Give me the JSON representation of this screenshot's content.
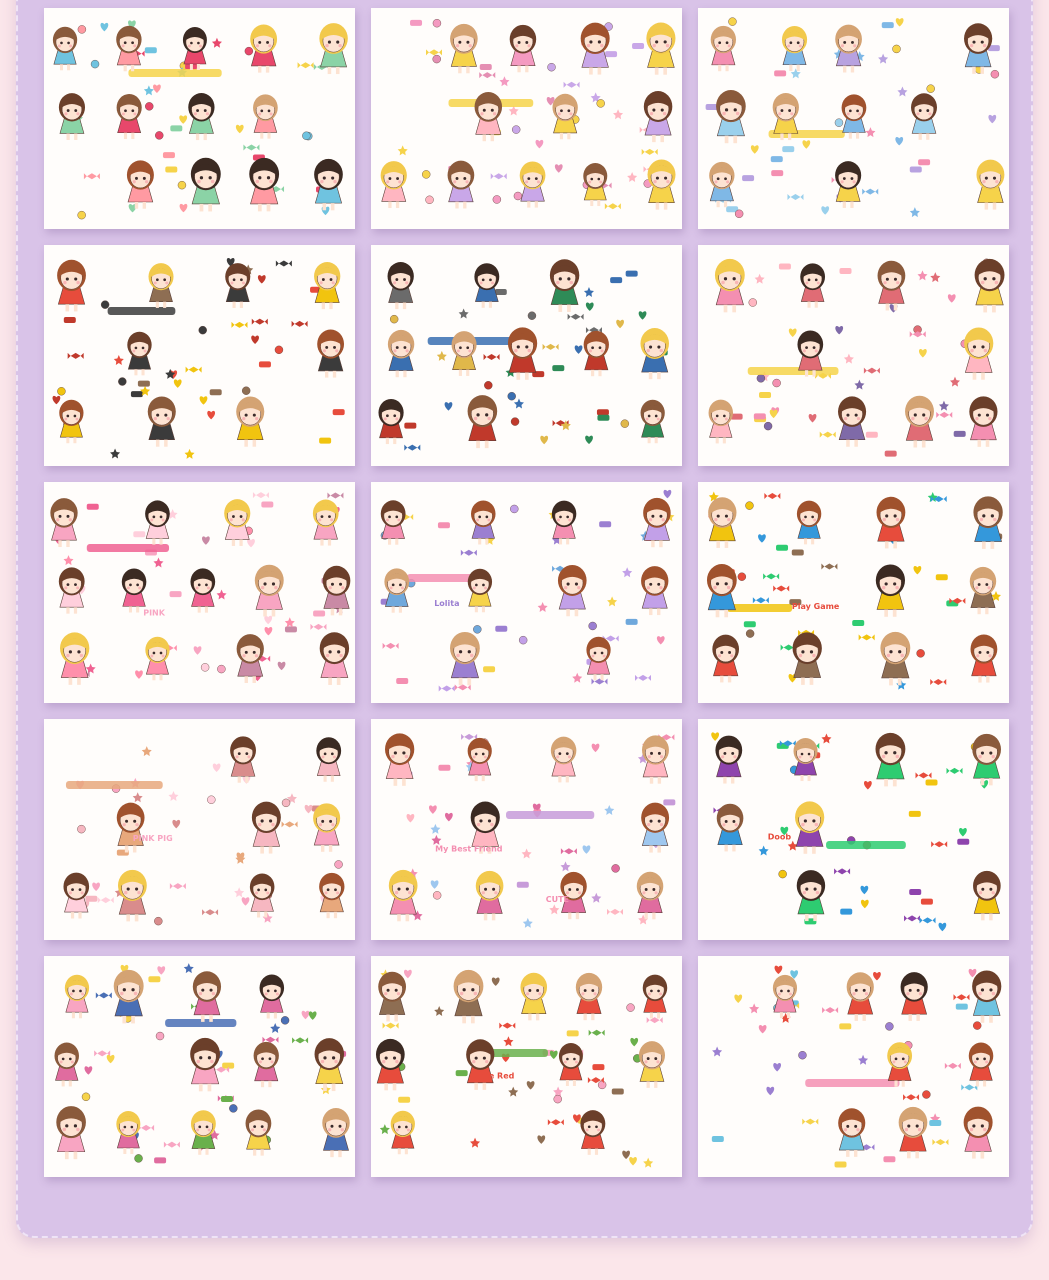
{
  "colors": {
    "page_background": "#fbe6ea",
    "frame_background": "#d9c3e8",
    "sheet_background": "#fffdfb"
  },
  "sheets": [
    {
      "row": 1,
      "col": 1,
      "theme": "fairytale-princesses",
      "printed_text": [],
      "palette": [
        "#e8476b",
        "#f6d34a",
        "#6fc3e0",
        "#ff9aa2",
        "#8bd3a6"
      ]
    },
    {
      "row": 1,
      "col": 2,
      "theme": "pink-princess-stage",
      "printed_text": [],
      "palette": [
        "#f49ac1",
        "#f6d34a",
        "#c9a7e8",
        "#ffb6c1",
        "#e58fb3"
      ]
    },
    {
      "row": 1,
      "col": 3,
      "theme": "ice-princess-castle",
      "printed_text": [],
      "palette": [
        "#7fb8e6",
        "#f6d34a",
        "#b8a2e0",
        "#f48fb1",
        "#9ad0ec"
      ]
    },
    {
      "row": 2,
      "col": 1,
      "theme": "wizard-school",
      "printed_text": [],
      "palette": [
        "#c0392b",
        "#3b3b3b",
        "#f1c40f",
        "#8e6e53",
        "#e74c3c"
      ]
    },
    {
      "row": 2,
      "col": 2,
      "theme": "wizard-houses",
      "printed_text": [],
      "palette": [
        "#2e8b57",
        "#3a6fb0",
        "#e0b84a",
        "#c0392b",
        "#6b6b6b"
      ]
    },
    {
      "row": 2,
      "col": 3,
      "theme": "magical-girls",
      "printed_text": [],
      "palette": [
        "#f48fb1",
        "#f6d34a",
        "#ffb6c1",
        "#7f6aa8",
        "#e06c75"
      ]
    },
    {
      "row": 3,
      "col": 1,
      "theme": "pink-sweet-girls",
      "printed_text": [
        "PINK"
      ],
      "palette": [
        "#f8a5c2",
        "#f06292",
        "#ffcfdc",
        "#c98aa5",
        "#ff8fab"
      ]
    },
    {
      "row": 3,
      "col": 2,
      "theme": "lolita-dress-up",
      "printed_text": [
        "Lolita"
      ],
      "palette": [
        "#9b7fd1",
        "#f48fb1",
        "#6fa8dc",
        "#f6d34a",
        "#c2a0e8"
      ]
    },
    {
      "row": 3,
      "col": 3,
      "theme": "traditional-and-game",
      "printed_text": [
        "Play Game"
      ],
      "palette": [
        "#e74c3c",
        "#f1c40f",
        "#2ecc71",
        "#3498db",
        "#8e6e53"
      ]
    },
    {
      "row": 4,
      "col": 1,
      "theme": "bunny-bears",
      "printed_text": [
        "PINK PIG"
      ],
      "palette": [
        "#f8a5c2",
        "#e8a87c",
        "#ffcfdc",
        "#d98c8c",
        "#f6b7c1"
      ]
    },
    {
      "row": 4,
      "col": 2,
      "theme": "best-friends",
      "printed_text": [
        "My Best Friend",
        "CUTE"
      ],
      "palette": [
        "#f48fb1",
        "#c79bd9",
        "#ffb6c1",
        "#e06c9f",
        "#9ec7ef"
      ]
    },
    {
      "row": 4,
      "col": 3,
      "theme": "adventure-friends",
      "printed_text": [
        "Doob"
      ],
      "palette": [
        "#e74c3c",
        "#2ecc71",
        "#f1c40f",
        "#8e44ad",
        "#3498db"
      ]
    },
    {
      "row": 5,
      "col": 1,
      "theme": "garden-arches",
      "printed_text": [],
      "palette": [
        "#e06c9f",
        "#4a6fb5",
        "#f6d34a",
        "#6ab04c",
        "#f8a5c2"
      ]
    },
    {
      "row": 5,
      "col": 2,
      "theme": "little-red",
      "printed_text": [
        "Little Red"
      ],
      "palette": [
        "#e74c3c",
        "#6ab04c",
        "#f8a5c2",
        "#f6d34a",
        "#8e6e53"
      ]
    },
    {
      "row": 5,
      "col": 3,
      "theme": "sweet-daily",
      "printed_text": [],
      "palette": [
        "#e74c3c",
        "#f48fb1",
        "#6fc3e0",
        "#f6d34a",
        "#9b7fd1"
      ]
    }
  ]
}
